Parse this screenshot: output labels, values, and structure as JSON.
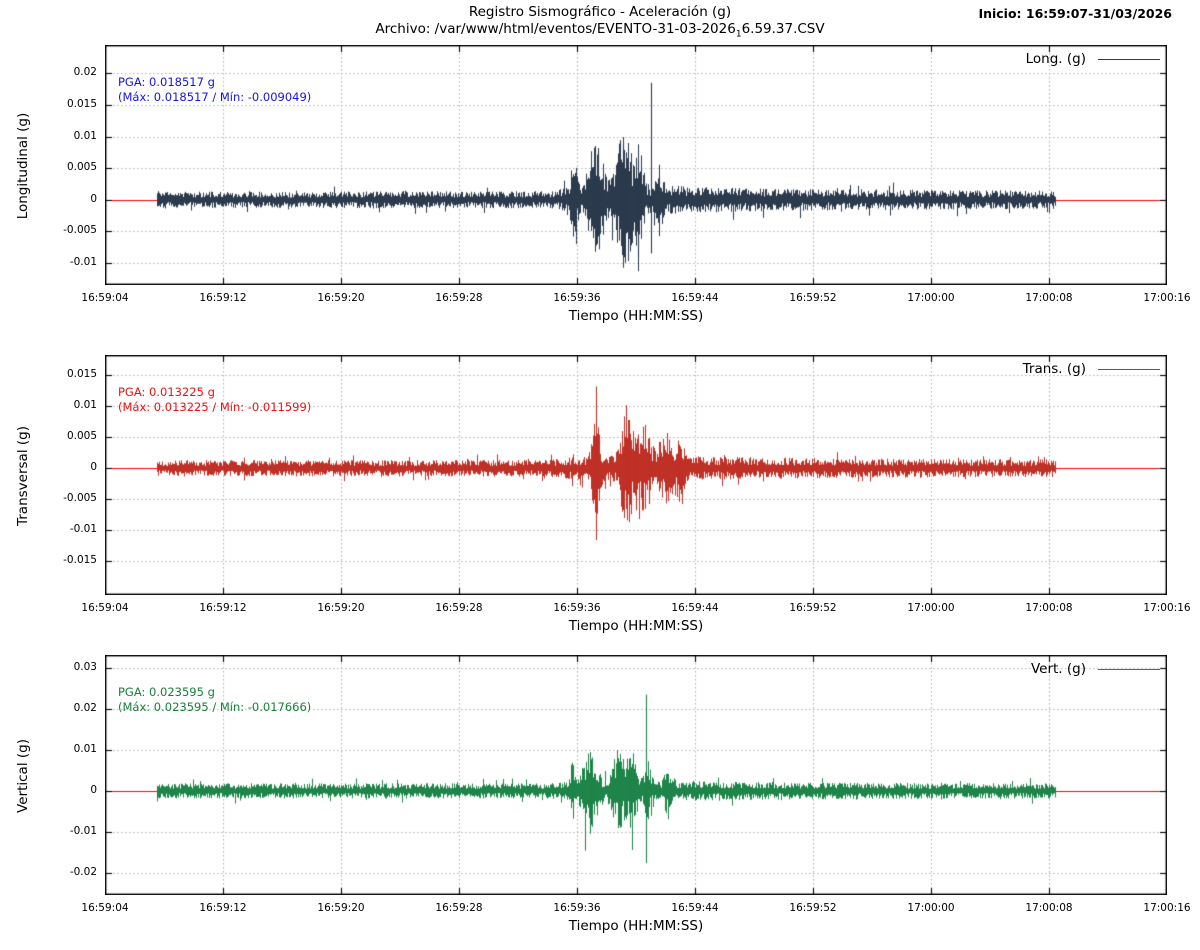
{
  "header": {
    "title": "Registro Sismográfico - Aceleración (g)",
    "archivo_prefix": "Archivo: /var/www/html/eventos/EVENTO-31-03-2026",
    "archivo_sub": "1",
    "archivo_suffix": "6.59.37.CSV",
    "inicio_label": "Inicio: 16:59:07-31/03/2026"
  },
  "chart_data": [
    {
      "type": "line",
      "name": "longitudinal",
      "title": "Registro Sismográfico - Aceleración (g)",
      "ylabel": "Longitudinal (g)",
      "xlabel": "Tiempo (HH:MM:SS)",
      "legend_label": "Long. (g)",
      "legend_position": "top-right",
      "grid": true,
      "color": "#2b3a4d",
      "zero_line_color": "#ff0000",
      "pga_g": 0.018517,
      "max_g": 0.018517,
      "min_g": -0.009049,
      "annotation": {
        "line1": "PGA: 0.018517 g",
        "line2": "(Máx: 0.018517 / Mín: -0.009049)",
        "color": "#1515e0"
      },
      "ylim": [
        -0.0135,
        0.0245
      ],
      "yticks": [
        0.02,
        0.015,
        0.01,
        0.005,
        0,
        -0.005,
        -0.01
      ],
      "x_range_seconds": [
        0,
        72
      ],
      "xtick_interval_s": 8,
      "xticks": [
        "16:59:04",
        "16:59:12",
        "16:59:20",
        "16:59:28",
        "16:59:36",
        "16:59:44",
        "16:59:52",
        "17:00:00",
        "17:00:08",
        "17:00:16"
      ],
      "synth": {
        "seed": 11,
        "start": 3.5,
        "end": 64.5,
        "noise": [
          [
            3.5,
            0.0011
          ],
          [
            4.5,
            0.0009
          ],
          [
            30.5,
            0.00095
          ],
          [
            31.5,
            0.0015
          ],
          [
            38,
            0.0016
          ],
          [
            41,
            0.0014
          ],
          [
            48,
            0.0012
          ],
          [
            56,
            0.0011
          ],
          [
            64.5,
            0.001
          ]
        ],
        "bursts": [
          {
            "t": 31.8,
            "w": 0.3,
            "a": 0.0028
          },
          {
            "t": 33.3,
            "w": 0.55,
            "a": 0.0062
          },
          {
            "t": 35.2,
            "w": 0.6,
            "a": 0.0066
          },
          {
            "t": 36.2,
            "w": 0.35,
            "a": 0.0045
          },
          {
            "t": 37.6,
            "w": 0.25,
            "a": 0.0025
          }
        ],
        "spikes": [
          {
            "t": 33.2,
            "up": 0.0085,
            "dn": -0.006
          },
          {
            "t": 33.45,
            "up": 0.0078,
            "dn": -0.0058
          },
          {
            "t": 35.1,
            "up": 0.0088,
            "dn": -0.0064
          },
          {
            "t": 35.3,
            "up": 0.0075,
            "dn": -0.0052
          },
          {
            "t": 36.15,
            "up": 0.0062,
            "dn": -0.009049
          },
          {
            "t": 37.0,
            "up": 0.018517,
            "dn": -0.0085
          }
        ]
      }
    },
    {
      "type": "line",
      "name": "transversal",
      "ylabel": "Transversal (g)",
      "xlabel": "Tiempo (HH:MM:SS)",
      "legend_label": "Trans. (g)",
      "legend_position": "top-right",
      "grid": true,
      "color": "#bf3026",
      "zero_line_color": "#ff0000",
      "pga_g": 0.013225,
      "max_g": 0.013225,
      "min_g": -0.011599,
      "annotation": {
        "line1": "PGA: 0.013225 g",
        "line2": "(Máx: 0.013225 / Mín: -0.011599)",
        "color": "#ee1111"
      },
      "ylim": [
        -0.0205,
        0.0183
      ],
      "yticks": [
        0.015,
        0.01,
        0.005,
        0,
        -0.005,
        -0.01,
        -0.015
      ],
      "x_range_seconds": [
        0,
        72
      ],
      "xtick_interval_s": 8,
      "xticks": [
        "16:59:04",
        "16:59:12",
        "16:59:20",
        "16:59:28",
        "16:59:36",
        "16:59:44",
        "16:59:52",
        "17:00:00",
        "17:00:08",
        "17:00:16"
      ],
      "synth": {
        "seed": 22,
        "start": 3.5,
        "end": 64.5,
        "noise": [
          [
            3.5,
            0.0009
          ],
          [
            30,
            0.00095
          ],
          [
            32,
            0.0013
          ],
          [
            38,
            0.0015
          ],
          [
            42,
            0.0013
          ],
          [
            50,
            0.0011
          ],
          [
            64.5,
            0.001
          ]
        ],
        "bursts": [
          {
            "t": 33.3,
            "w": 0.3,
            "a": 0.005
          },
          {
            "t": 35.4,
            "w": 0.5,
            "a": 0.0055
          },
          {
            "t": 36.6,
            "w": 0.5,
            "a": 0.004
          },
          {
            "t": 38.0,
            "w": 0.4,
            "a": 0.003
          },
          {
            "t": 39.0,
            "w": 0.3,
            "a": 0.0028
          }
        ],
        "spikes": [
          {
            "t": 33.3,
            "up": 0.013225,
            "dn": -0.011599
          },
          {
            "t": 35.35,
            "up": 0.0102,
            "dn": -0.0052
          },
          {
            "t": 35.55,
            "up": 0.0078,
            "dn": -0.0048
          },
          {
            "t": 36.0,
            "up": 0.004,
            "dn": -0.0068
          },
          {
            "t": 36.9,
            "up": 0.0045,
            "dn": -0.0058
          },
          {
            "t": 38.9,
            "up": 0.0038,
            "dn": -0.0032
          }
        ]
      }
    },
    {
      "type": "line",
      "name": "vertical",
      "ylabel": "Vertical (g)",
      "xlabel": "Tiempo (HH:MM:SS)",
      "legend_label": "Vert. (g)",
      "legend_position": "top-right",
      "grid": true,
      "color": "#1e8449",
      "zero_line_color": "#ff0000",
      "pga_g": 0.023595,
      "max_g": 0.023595,
      "min_g": -0.017666,
      "annotation": {
        "line1": "PGA: 0.023595 g",
        "line2": "(Máx: 0.023595 / Mín: -0.017666)",
        "color": "#18803a"
      },
      "ylim": [
        -0.0255,
        0.0333
      ],
      "yticks": [
        0.03,
        0.02,
        0.01,
        0,
        -0.01,
        -0.02
      ],
      "x_range_seconds": [
        0,
        72
      ],
      "xtick_interval_s": 8,
      "xticks": [
        "16:59:04",
        "16:59:12",
        "16:59:20",
        "16:59:28",
        "16:59:36",
        "16:59:44",
        "16:59:52",
        "17:00:00",
        "17:00:08",
        "17:00:16"
      ],
      "synth": {
        "seed": 33,
        "start": 3.5,
        "end": 64.5,
        "noise": [
          [
            3.5,
            0.0013
          ],
          [
            30,
            0.0013
          ],
          [
            32,
            0.0017
          ],
          [
            38,
            0.0018
          ],
          [
            42,
            0.0016
          ],
          [
            50,
            0.0014
          ],
          [
            64.5,
            0.0013
          ]
        ],
        "bursts": [
          {
            "t": 31.7,
            "w": 0.15,
            "a": 0.004
          },
          {
            "t": 32.9,
            "w": 0.55,
            "a": 0.0062
          },
          {
            "t": 34.8,
            "w": 0.45,
            "a": 0.0055
          },
          {
            "t": 35.7,
            "w": 0.4,
            "a": 0.0055
          },
          {
            "t": 36.8,
            "w": 0.25,
            "a": 0.0035
          },
          {
            "t": 38.2,
            "w": 0.3,
            "a": 0.0025
          }
        ],
        "spikes": [
          {
            "t": 31.7,
            "up": 0.0063,
            "dn": -0.0042
          },
          {
            "t": 32.85,
            "up": 0.0095,
            "dn": -0.0105
          },
          {
            "t": 33.05,
            "up": 0.0082,
            "dn": -0.0088
          },
          {
            "t": 34.8,
            "up": 0.008,
            "dn": -0.0091
          },
          {
            "t": 35.6,
            "up": 0.008,
            "dn": -0.009
          },
          {
            "t": 36.7,
            "up": 0.023595,
            "dn": -0.017666
          }
        ]
      }
    }
  ]
}
